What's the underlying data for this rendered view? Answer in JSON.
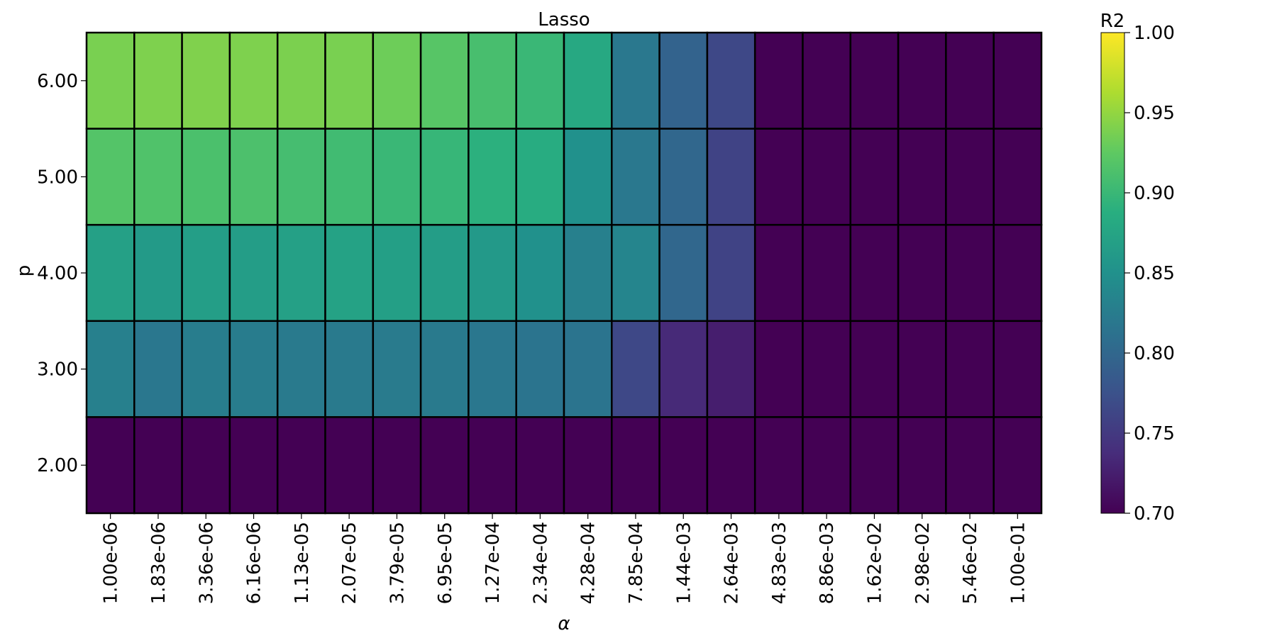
{
  "chart_data": {
    "type": "heatmap",
    "title": "Lasso",
    "xlabel": "α",
    "ylabel": "p",
    "x": [
      "1.00e-06",
      "1.83e-06",
      "3.36e-06",
      "6.16e-06",
      "1.13e-05",
      "2.07e-05",
      "3.79e-05",
      "6.95e-05",
      "1.27e-04",
      "2.34e-04",
      "4.28e-04",
      "7.85e-04",
      "1.44e-03",
      "2.64e-03",
      "4.83e-03",
      "8.86e-03",
      "1.62e-02",
      "2.98e-02",
      "5.46e-02",
      "1.00e-01"
    ],
    "y": [
      "6.00",
      "5.00",
      "4.00",
      "3.00",
      "2.00"
    ],
    "values": [
      [
        0.938,
        0.94,
        0.941,
        0.94,
        0.939,
        0.938,
        0.932,
        0.92,
        0.91,
        0.9,
        0.88,
        0.82,
        0.795,
        0.765,
        0.6,
        0.6,
        0.6,
        0.6,
        0.6,
        0.6
      ],
      [
        0.918,
        0.915,
        0.912,
        0.913,
        0.908,
        0.905,
        0.9,
        0.898,
        0.89,
        0.885,
        0.85,
        0.82,
        0.8,
        0.76,
        0.6,
        0.6,
        0.6,
        0.6,
        0.6,
        0.6
      ],
      [
        0.87,
        0.862,
        0.867,
        0.866,
        0.87,
        0.872,
        0.868,
        0.866,
        0.86,
        0.85,
        0.83,
        0.835,
        0.8,
        0.76,
        0.6,
        0.6,
        0.6,
        0.6,
        0.6,
        0.6
      ],
      [
        0.83,
        0.818,
        0.826,
        0.825,
        0.822,
        0.822,
        0.823,
        0.822,
        0.818,
        0.815,
        0.815,
        0.765,
        0.735,
        0.725,
        0.6,
        0.6,
        0.6,
        0.6,
        0.6,
        0.6
      ],
      [
        0.6,
        0.6,
        0.6,
        0.6,
        0.6,
        0.6,
        0.6,
        0.6,
        0.6,
        0.6,
        0.6,
        0.6,
        0.6,
        0.6,
        0.6,
        0.6,
        0.6,
        0.6,
        0.6,
        0.6
      ]
    ],
    "colorbar": {
      "label": "R2",
      "range": [
        0.7,
        1.0
      ],
      "ticks": [
        "0.70",
        "0.75",
        "0.80",
        "0.85",
        "0.90",
        "0.95",
        "1.00"
      ],
      "colormap": "viridis"
    },
    "cell_border_color": "#000000"
  }
}
